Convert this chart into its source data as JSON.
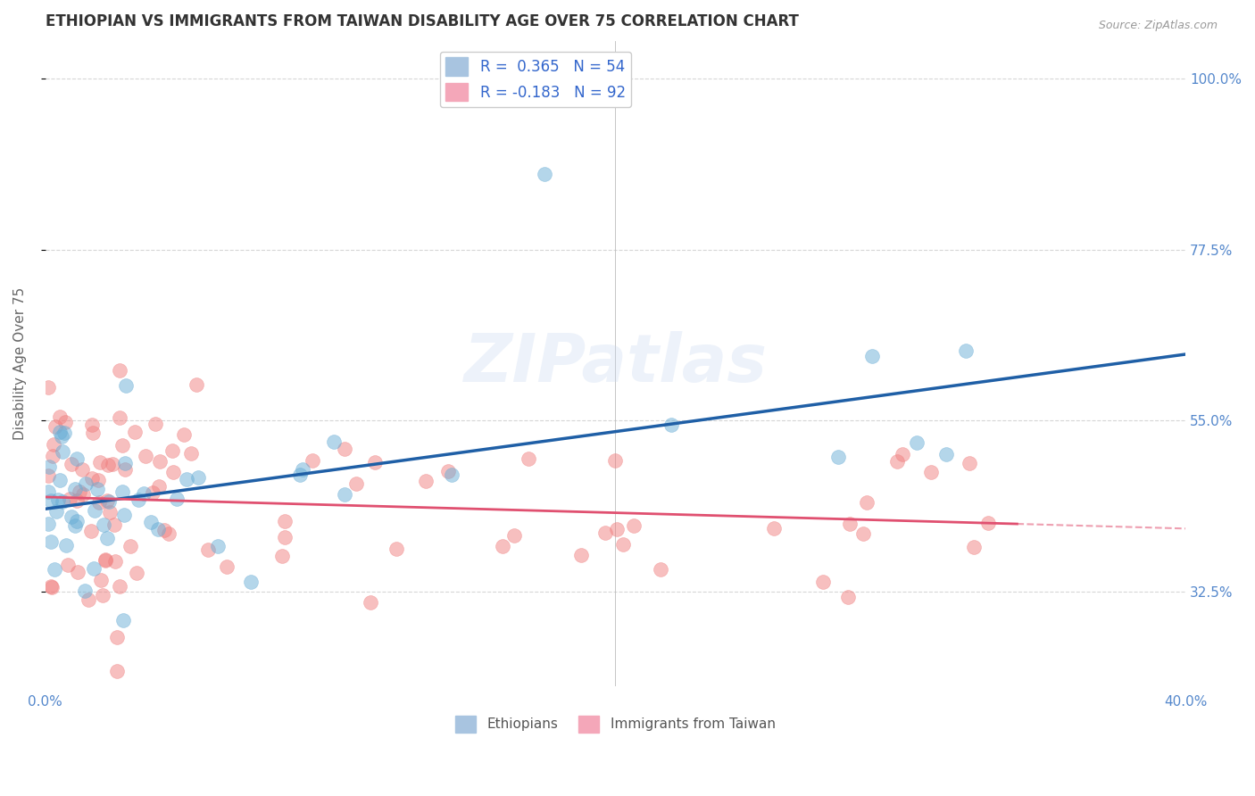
{
  "title": "ETHIOPIAN VS IMMIGRANTS FROM TAIWAN DISABILITY AGE OVER 75 CORRELATION CHART",
  "source_text": "Source: ZipAtlas.com",
  "ylabel": "Disability Age Over 75",
  "xlim": [
    0.0,
    0.4
  ],
  "ylim": [
    0.2,
    1.05
  ],
  "ytick_values": [
    0.325,
    0.55,
    0.775,
    1.0
  ],
  "ytick_labels": [
    "32.5%",
    "55.0%",
    "77.5%",
    "100.0%"
  ],
  "watermark": "ZIPatlas",
  "blue_color": "#6aaed6",
  "pink_color": "#f08080",
  "blue_line_color": "#1f5fa6",
  "pink_line_color": "#e05070",
  "background_color": "#ffffff",
  "grid_color": "#cccccc",
  "title_color": "#333333",
  "axis_label_color": "#5588cc",
  "r_value_blue": 0.365,
  "r_value_pink": -0.183,
  "n_blue": 54,
  "n_pink": 92,
  "blue_seed": 42,
  "pink_seed": 7
}
